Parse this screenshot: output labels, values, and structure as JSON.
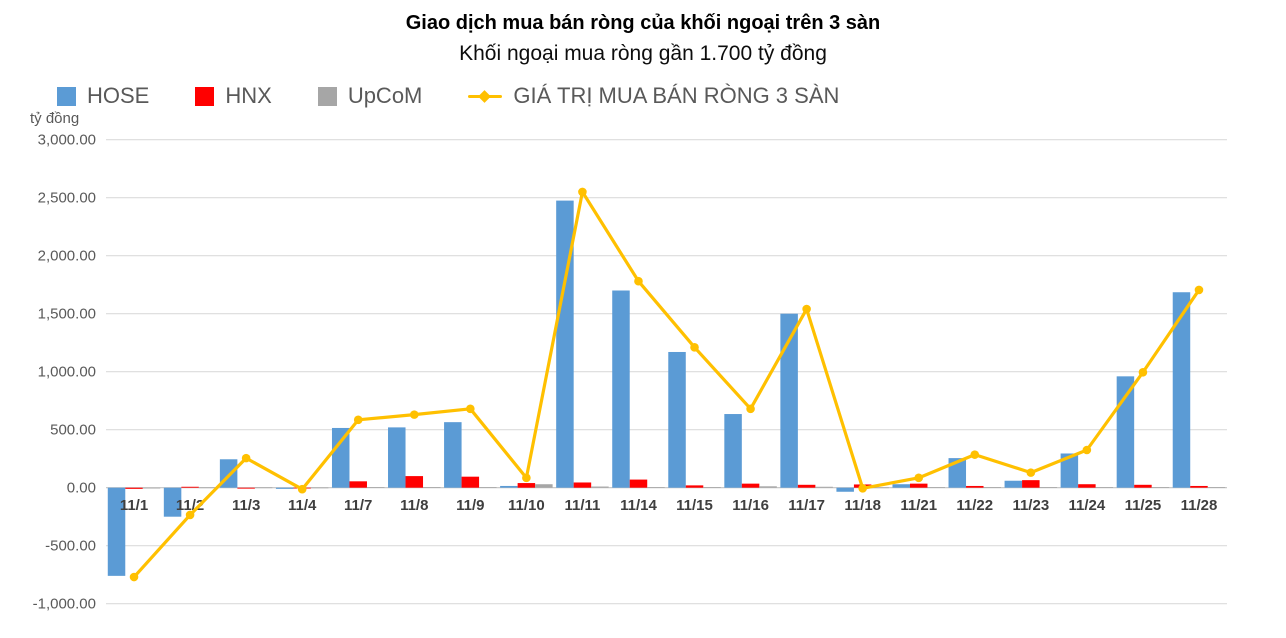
{
  "header": {
    "title": "Giao dịch mua bán ròng của khối ngoại trên 3 sàn",
    "subtitle": "Khối ngoại mua ròng gần 1.700 tỷ đồng"
  },
  "unit_label": "tỷ đồng",
  "legend": [
    {
      "label": "HOSE",
      "color": "#5B9BD5",
      "swatch": "square"
    },
    {
      "label": "HNX",
      "color": "#FF0000",
      "swatch": "square"
    },
    {
      "label": "UpCoM",
      "color": "#A6A6A6",
      "swatch": "square"
    },
    {
      "label": "GIÁ TRỊ MUA BÁN RÒNG 3 SÀN",
      "color": "#FFC000",
      "swatch": "line"
    }
  ],
  "chart_data": {
    "type": "bar",
    "title": "Giao dịch mua bán ròng của khối ngoại trên 3 sàn",
    "subtitle": "Khối ngoại mua ròng gần 1.700 tỷ đồng",
    "ylabel": "tỷ đồng",
    "xlabel": "",
    "ylim": [
      -1000,
      3000
    ],
    "ytick_step": 500,
    "ytick_labels": [
      "3,000.00",
      "2,500.00",
      "2,000.00",
      "1,500.00",
      "1,000.00",
      "500.00",
      "0.00",
      "-500.00",
      "-1,000.00"
    ],
    "grid": true,
    "legend_position": "top-left",
    "categories": [
      "11/1",
      "11/2",
      "11/3",
      "11/4",
      "11/7",
      "11/8",
      "11/9",
      "11/10",
      "11/11",
      "11/14",
      "11/15",
      "11/16",
      "11/17",
      "11/18",
      "11/21",
      "11/22",
      "11/23",
      "11/24",
      "11/25",
      "11/28"
    ],
    "series": [
      {
        "name": "HOSE",
        "type": "bar",
        "color": "#5B9BD5",
        "values": [
          -760,
          -250,
          245,
          -10,
          515,
          520,
          565,
          15,
          2475,
          1700,
          1170,
          635,
          1500,
          -35,
          30,
          255,
          60,
          295,
          960,
          1685
        ]
      },
      {
        "name": "HNX",
        "type": "bar",
        "color": "#FF0000",
        "values": [
          -10,
          8,
          -8,
          -5,
          55,
          100,
          95,
          40,
          45,
          70,
          20,
          35,
          25,
          28,
          35,
          15,
          65,
          30,
          25,
          15
        ]
      },
      {
        "name": "UpCoM",
        "type": "bar",
        "color": "#A6A6A6",
        "values": [
          -3,
          3,
          3,
          2,
          5,
          5,
          5,
          30,
          10,
          5,
          5,
          12,
          8,
          3,
          5,
          5,
          5,
          5,
          5,
          5
        ]
      },
      {
        "name": "GIÁ TRỊ MUA BÁN RÒNG 3 SÀN",
        "type": "line",
        "color": "#FFC000",
        "values": [
          -770,
          -235,
          255,
          -13,
          585,
          630,
          680,
          85,
          2550,
          1780,
          1210,
          680,
          1540,
          -5,
          85,
          285,
          130,
          325,
          995,
          1705
        ]
      }
    ]
  },
  "style": {
    "grid_color": "#DCDCDC",
    "zero_line_color": "#C3C3C3",
    "ytick_color": "#595959",
    "xtick_color": "#3F3F3F",
    "legend_text_color": "#595959"
  }
}
